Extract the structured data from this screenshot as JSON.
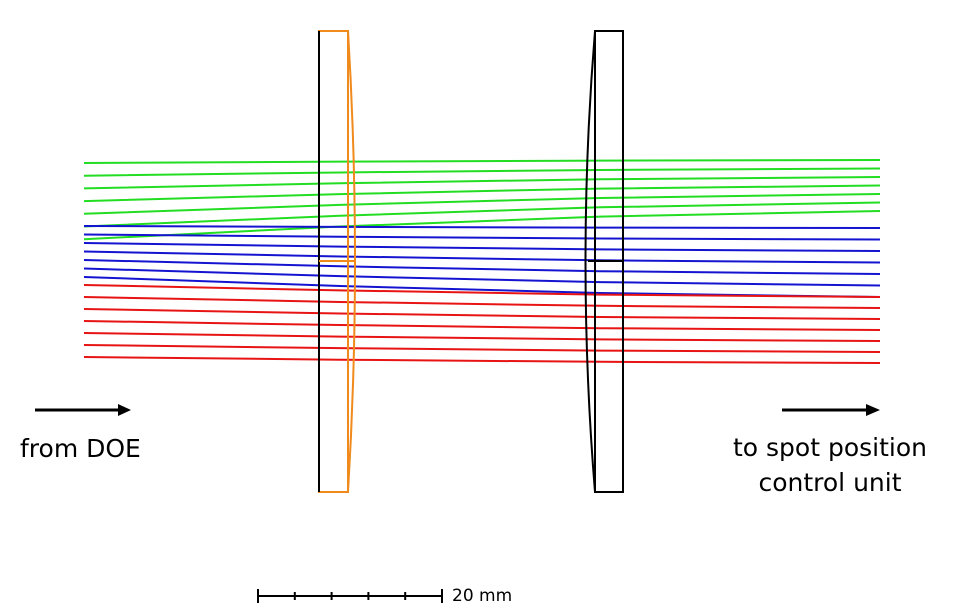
{
  "labels": {
    "input": "from DOE",
    "output": [
      "to spot position",
      "control unit"
    ],
    "scale": "20 mm"
  }
}
